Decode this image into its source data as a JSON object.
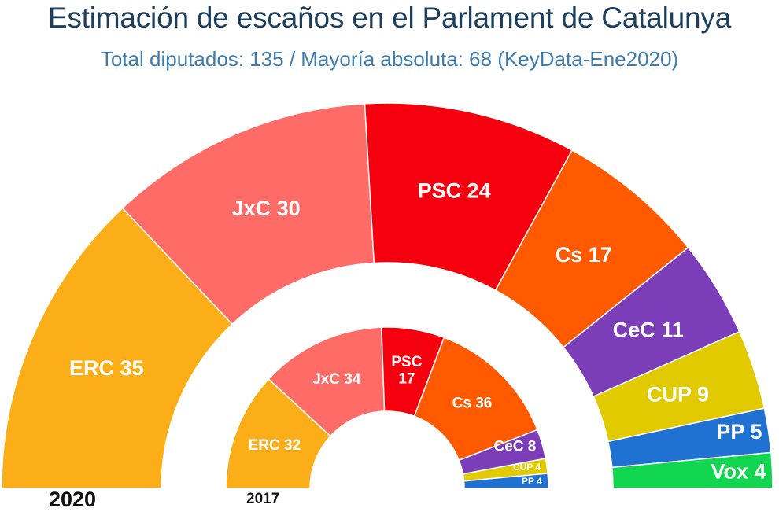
{
  "title": "Estimación de escaños en el Parlament de Catalunya",
  "subtitle": "Total diputados: 135 / Mayoría absoluta: 68 (KeyData-Ene2020)",
  "chart_data": {
    "type": "pie",
    "subtype": "semicircle-parliament",
    "title": "Estimación de escaños en el Parlament de Catalunya",
    "subtitle": "Total diputados: 135 / Mayoría absoluta: 68 (KeyData-Ene2020)",
    "total_seats": 135,
    "majority": 68,
    "series": [
      {
        "name": "2020",
        "ring": "outer",
        "slices": [
          {
            "party": "ERC",
            "seats": 35,
            "color": "#fbae17",
            "label": "ERC 35"
          },
          {
            "party": "JxC",
            "seats": 30,
            "color": "#ff6b66",
            "label": "JxC 30"
          },
          {
            "party": "PSC",
            "seats": 24,
            "color": "#f4000f",
            "label": "PSC 24"
          },
          {
            "party": "Cs",
            "seats": 17,
            "color": "#ff5a00",
            "label": "Cs 17"
          },
          {
            "party": "CeC",
            "seats": 11,
            "color": "#7b3db8",
            "label": "CeC 11"
          },
          {
            "party": "CUP",
            "seats": 9,
            "color": "#e1cb00",
            "label": "CUP 9"
          },
          {
            "party": "PP",
            "seats": 5,
            "color": "#1f72d1",
            "label": "PP 5"
          },
          {
            "party": "Vox",
            "seats": 4,
            "color": "#12d64f",
            "label": "Vox 4"
          }
        ]
      },
      {
        "name": "2017",
        "ring": "inner",
        "slices": [
          {
            "party": "ERC",
            "seats": 32,
            "color": "#fbae17",
            "label": "ERC 32"
          },
          {
            "party": "JxC",
            "seats": 34,
            "color": "#ff6b66",
            "label": "JxC 34"
          },
          {
            "party": "PSC",
            "seats": 17,
            "color": "#f4000f",
            "label": "PSC\n17"
          },
          {
            "party": "Cs",
            "seats": 36,
            "color": "#ff5a00",
            "label": "Cs 36"
          },
          {
            "party": "CeC",
            "seats": 8,
            "color": "#7b3db8",
            "label": "CeC 8"
          },
          {
            "party": "CUP",
            "seats": 4,
            "color": "#e1cb00",
            "label": "CUP 4"
          },
          {
            "party": "PP",
            "seats": 4,
            "color": "#1f72d1",
            "label": "PP 4"
          }
        ]
      }
    ]
  },
  "year_labels": {
    "outer": "2020",
    "inner": "2017"
  }
}
